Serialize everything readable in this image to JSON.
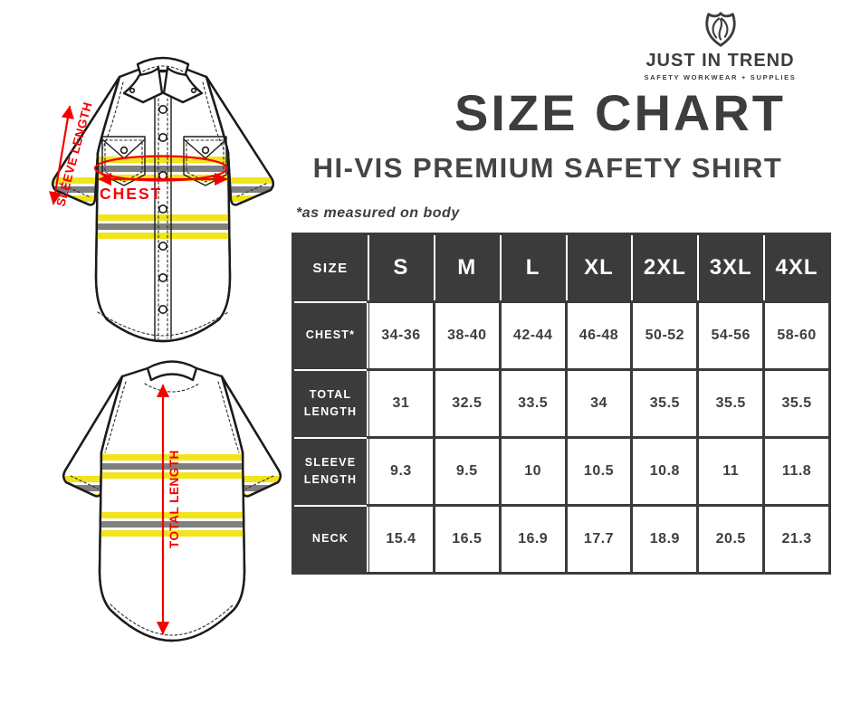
{
  "brand": {
    "name": "JUST IN TREND",
    "tagline": "SAFETY WORKWEAR + SUPPLIES",
    "logo_icon": "shield-flame-icon"
  },
  "header": {
    "title": "SIZE CHART",
    "subtitle": "HI-VIS PREMIUM SAFETY SHIRT",
    "note": "*as measured on body"
  },
  "diagram": {
    "front": {
      "sleeve_length_label": "SLEEVE LENGTH",
      "chest_label": "CHEST"
    },
    "back": {
      "total_length_label": "TOTAL LENGTH"
    }
  },
  "chart_data": {
    "type": "table",
    "title": "SIZE CHART",
    "corner_label": "SIZE",
    "columns": [
      "S",
      "M",
      "L",
      "XL",
      "2XL",
      "3XL",
      "4XL"
    ],
    "rows": [
      {
        "label": "CHEST*",
        "values": [
          "34-36",
          "38-40",
          "42-44",
          "46-48",
          "50-52",
          "54-56",
          "58-60"
        ]
      },
      {
        "label": "TOTAL LENGTH",
        "values": [
          "31",
          "32.5",
          "33.5",
          "34",
          "35.5",
          "35.5",
          "35.5"
        ]
      },
      {
        "label": "SLEEVE LENGTH",
        "values": [
          "9.3",
          "9.5",
          "10",
          "10.5",
          "10.8",
          "11",
          "11.8"
        ]
      },
      {
        "label": "NECK",
        "values": [
          "15.4",
          "16.5",
          "16.9",
          "17.7",
          "18.9",
          "20.5",
          "21.3"
        ]
      }
    ]
  },
  "colors": {
    "ink": "#3d3d3d",
    "cell_dark": "#3b3b3b",
    "accent_red": "#f40000",
    "hi_vis_yellow": "#f2e41c",
    "stripe_gray": "#7f7f7f",
    "outline": "#1b1b1b"
  }
}
